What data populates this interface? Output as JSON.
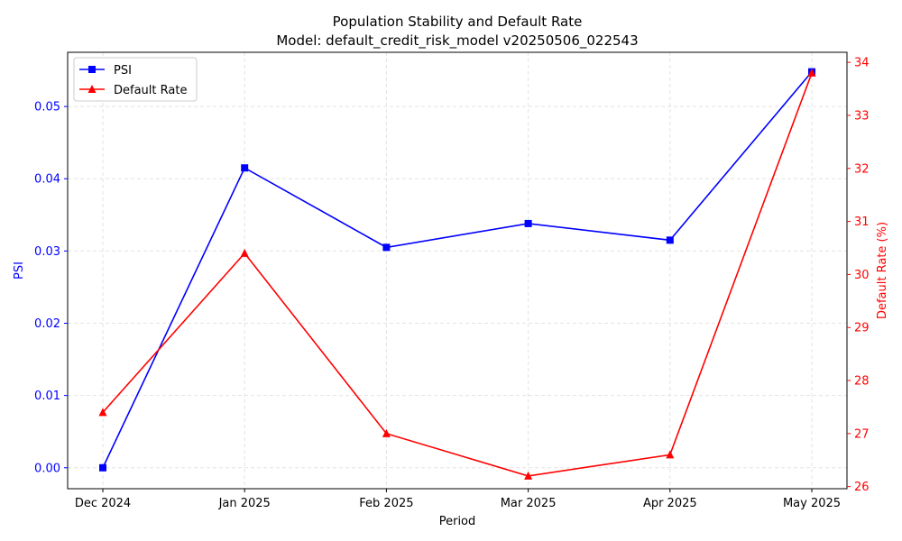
{
  "chart_data": {
    "type": "line",
    "title": "Population Stability and Default Rate",
    "subtitle": "Model: default_credit_risk_model v20250506_022543",
    "xlabel": "Period",
    "categories": [
      "Dec 2024",
      "Jan 2025",
      "Feb 2025",
      "Mar 2025",
      "Apr 2025",
      "May 2025"
    ],
    "left_axis": {
      "label": "PSI",
      "color": "#0000ff",
      "ylim": [
        -0.0029,
        0.0575
      ],
      "ticks": [
        "0.00",
        "0.01",
        "0.02",
        "0.03",
        "0.04",
        "0.05"
      ],
      "tick_values": [
        0,
        0.01,
        0.02,
        0.03,
        0.04,
        0.05
      ]
    },
    "right_axis": {
      "label": "Default Rate (%)",
      "color": "#ff0000",
      "ylim": [
        25.96,
        34.19
      ],
      "ticks": [
        "26",
        "27",
        "28",
        "29",
        "30",
        "31",
        "32",
        "33",
        "34"
      ],
      "tick_values": [
        26,
        27,
        28,
        29,
        30,
        31,
        32,
        33,
        34
      ]
    },
    "series": [
      {
        "name": "PSI",
        "axis": "left",
        "marker": "square",
        "color": "#0000ff",
        "values": [
          0.0,
          0.0415,
          0.0305,
          0.0338,
          0.0315,
          0.0548
        ]
      },
      {
        "name": "Default Rate",
        "axis": "right",
        "marker": "triangle",
        "color": "#ff0000",
        "values": [
          27.4,
          30.4,
          27.0,
          26.2,
          26.6,
          33.8
        ]
      }
    ],
    "grid": true,
    "legend": "upper-left"
  }
}
